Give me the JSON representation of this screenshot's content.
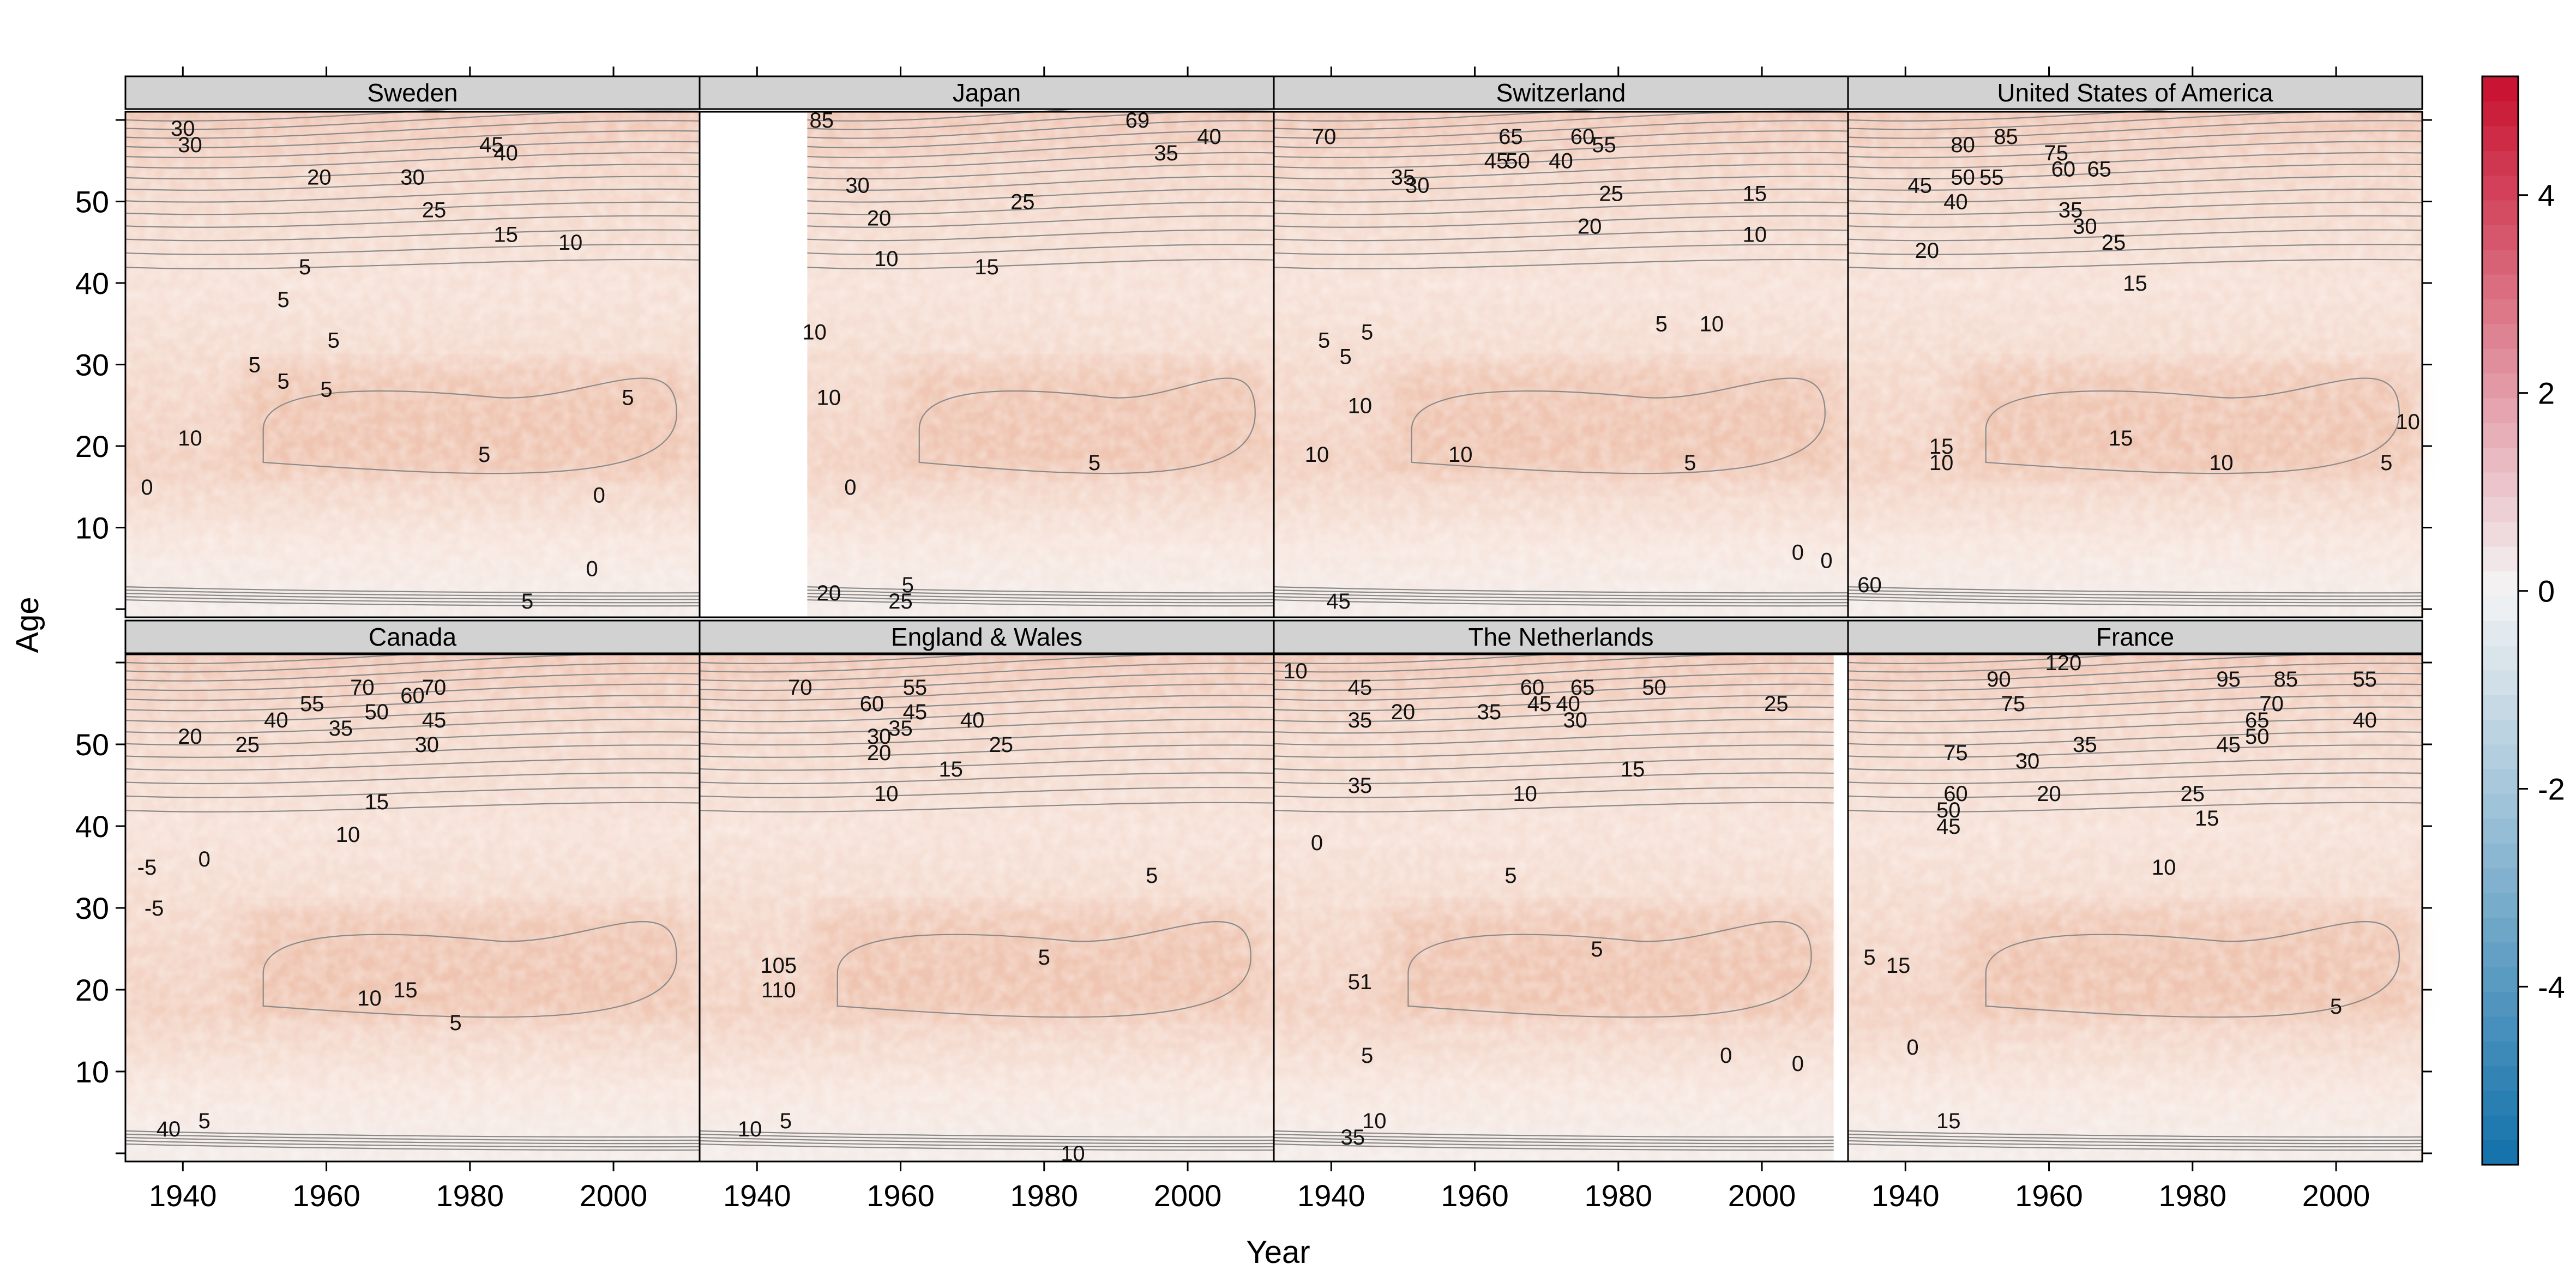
{
  "chart_data": {
    "type": "heatmap",
    "xlabel": "Year",
    "ylabel": "Age",
    "xlim": [
      1932,
      2012
    ],
    "ylim": [
      -1,
      61
    ],
    "x_ticks": [
      1940,
      1960,
      1980,
      2000
    ],
    "y_ticks": [
      10,
      20,
      30,
      40,
      50
    ],
    "colorbar": {
      "ticks": [
        4,
        2,
        0,
        -2,
        -4
      ],
      "range": [
        -5.8,
        5.2
      ],
      "colors": {
        "high": "#c8102e",
        "mid": "#f4f4f4",
        "low": "#1170aa"
      }
    },
    "panels": [
      {
        "name": "Sweden",
        "year_start": 1932,
        "year_end": 2012,
        "contour_labels": [
          {
            "text": "30",
            "year": 1940,
            "age": 59
          },
          {
            "text": "30",
            "year": 1941,
            "age": 57
          },
          {
            "text": "20",
            "year": 1959,
            "age": 53
          },
          {
            "text": "30",
            "year": 1972,
            "age": 53
          },
          {
            "text": "25",
            "year": 1975,
            "age": 49
          },
          {
            "text": "15",
            "year": 1985,
            "age": 46
          },
          {
            "text": "10",
            "year": 1994,
            "age": 45
          },
          {
            "text": "45",
            "year": 1983,
            "age": 57
          },
          {
            "text": "40",
            "year": 1985,
            "age": 56
          },
          {
            "text": "5",
            "year": 1957,
            "age": 42
          },
          {
            "text": "5",
            "year": 1954,
            "age": 38
          },
          {
            "text": "5",
            "year": 1950,
            "age": 30
          },
          {
            "text": "5",
            "year": 1961,
            "age": 33
          },
          {
            "text": "5",
            "year": 1954,
            "age": 28
          },
          {
            "text": "5",
            "year": 1960,
            "age": 27
          },
          {
            "text": "5",
            "year": 2002,
            "age": 26
          },
          {
            "text": "10",
            "year": 1941,
            "age": 21
          },
          {
            "text": "5",
            "year": 1982,
            "age": 19
          },
          {
            "text": "0",
            "year": 1935,
            "age": 15
          },
          {
            "text": "0",
            "year": 1998,
            "age": 14
          },
          {
            "text": "0",
            "year": 1997,
            "age": 5
          },
          {
            "text": "5",
            "year": 1988,
            "age": 1
          }
        ]
      },
      {
        "name": "Japan",
        "year_start": 1947,
        "year_end": 2012,
        "contour_labels": [
          {
            "text": "85",
            "year": 1949,
            "age": 60
          },
          {
            "text": "69",
            "year": 1993,
            "age": 60
          },
          {
            "text": "40",
            "year": 2003,
            "age": 58
          },
          {
            "text": "35",
            "year": 1997,
            "age": 56
          },
          {
            "text": "30",
            "year": 1954,
            "age": 52
          },
          {
            "text": "25",
            "year": 1977,
            "age": 50
          },
          {
            "text": "20",
            "year": 1957,
            "age": 48
          },
          {
            "text": "10",
            "year": 1958,
            "age": 43
          },
          {
            "text": "15",
            "year": 1972,
            "age": 42
          },
          {
            "text": "10",
            "year": 1948,
            "age": 34
          },
          {
            "text": "10",
            "year": 1950,
            "age": 26
          },
          {
            "text": "0",
            "year": 1953,
            "age": 15
          },
          {
            "text": "5",
            "year": 1987,
            "age": 18
          },
          {
            "text": "20",
            "year": 1950,
            "age": 2
          },
          {
            "text": "5",
            "year": 1961,
            "age": 3
          },
          {
            "text": "25",
            "year": 1960,
            "age": 1
          }
        ]
      },
      {
        "name": "Switzerland",
        "year_start": 1932,
        "year_end": 2012,
        "contour_labels": [
          {
            "text": "70",
            "year": 1939,
            "age": 58
          },
          {
            "text": "65",
            "year": 1965,
            "age": 58
          },
          {
            "text": "60",
            "year": 1975,
            "age": 58
          },
          {
            "text": "55",
            "year": 1978,
            "age": 57
          },
          {
            "text": "45",
            "year": 1963,
            "age": 55
          },
          {
            "text": "50",
            "year": 1966,
            "age": 55
          },
          {
            "text": "40",
            "year": 1972,
            "age": 55
          },
          {
            "text": "35",
            "year": 1950,
            "age": 53
          },
          {
            "text": "30",
            "year": 1952,
            "age": 52
          },
          {
            "text": "25",
            "year": 1979,
            "age": 51
          },
          {
            "text": "15",
            "year": 1999,
            "age": 51
          },
          {
            "text": "20",
            "year": 1976,
            "age": 47
          },
          {
            "text": "10",
            "year": 1999,
            "age": 46
          },
          {
            "text": "5",
            "year": 1986,
            "age": 35
          },
          {
            "text": "10",
            "year": 1993,
            "age": 35
          },
          {
            "text": "5",
            "year": 1939,
            "age": 33
          },
          {
            "text": "5",
            "year": 1945,
            "age": 34
          },
          {
            "text": "5",
            "year": 1942,
            "age": 31
          },
          {
            "text": "10",
            "year": 1944,
            "age": 25
          },
          {
            "text": "10",
            "year": 1938,
            "age": 19
          },
          {
            "text": "10",
            "year": 1958,
            "age": 19
          },
          {
            "text": "5",
            "year": 1990,
            "age": 18
          },
          {
            "text": "0",
            "year": 2005,
            "age": 7
          },
          {
            "text": "0",
            "year": 2009,
            "age": 6
          },
          {
            "text": "45",
            "year": 1941,
            "age": 1
          }
        ]
      },
      {
        "name": "United States of America",
        "year_start": 1932,
        "year_end": 2012,
        "contour_labels": [
          {
            "text": "80",
            "year": 1948,
            "age": 57
          },
          {
            "text": "85",
            "year": 1954,
            "age": 58
          },
          {
            "text": "75",
            "year": 1961,
            "age": 56
          },
          {
            "text": "60",
            "year": 1962,
            "age": 54
          },
          {
            "text": "65",
            "year": 1967,
            "age": 54
          },
          {
            "text": "55",
            "year": 1952,
            "age": 53
          },
          {
            "text": "50",
            "year": 1948,
            "age": 53
          },
          {
            "text": "45",
            "year": 1942,
            "age": 52
          },
          {
            "text": "40",
            "year": 1947,
            "age": 50
          },
          {
            "text": "35",
            "year": 1963,
            "age": 49
          },
          {
            "text": "30",
            "year": 1965,
            "age": 47
          },
          {
            "text": "25",
            "year": 1969,
            "age": 45
          },
          {
            "text": "20",
            "year": 1943,
            "age": 44
          },
          {
            "text": "15",
            "year": 1972,
            "age": 40
          },
          {
            "text": "15",
            "year": 1945,
            "age": 20
          },
          {
            "text": "10",
            "year": 1945,
            "age": 18
          },
          {
            "text": "15",
            "year": 1970,
            "age": 21
          },
          {
            "text": "10",
            "year": 1984,
            "age": 18
          },
          {
            "text": "10",
            "year": 2010,
            "age": 23
          },
          {
            "text": "5",
            "year": 2007,
            "age": 18
          },
          {
            "text": "60",
            "year": 1935,
            "age": 3
          }
        ]
      },
      {
        "name": "Canada",
        "year_start": 1932,
        "year_end": 2012,
        "contour_labels": [
          {
            "text": "70",
            "year": 1965,
            "age": 57
          },
          {
            "text": "60",
            "year": 1972,
            "age": 56
          },
          {
            "text": "70",
            "year": 1975,
            "age": 57
          },
          {
            "text": "55",
            "year": 1958,
            "age": 55
          },
          {
            "text": "50",
            "year": 1967,
            "age": 54
          },
          {
            "text": "45",
            "year": 1975,
            "age": 53
          },
          {
            "text": "40",
            "year": 1953,
            "age": 53
          },
          {
            "text": "35",
            "year": 1962,
            "age": 52
          },
          {
            "text": "20",
            "year": 1941,
            "age": 51
          },
          {
            "text": "25",
            "year": 1949,
            "age": 50
          },
          {
            "text": "30",
            "year": 1974,
            "age": 50
          },
          {
            "text": "15",
            "year": 1967,
            "age": 43
          },
          {
            "text": "10",
            "year": 1963,
            "age": 39
          },
          {
            "text": "0",
            "year": 1943,
            "age": 36
          },
          {
            "text": "-5",
            "year": 1935,
            "age": 35
          },
          {
            "text": "-5",
            "year": 1936,
            "age": 30
          },
          {
            "text": "10",
            "year": 1966,
            "age": 19
          },
          {
            "text": "15",
            "year": 1971,
            "age": 20
          },
          {
            "text": "5",
            "year": 1978,
            "age": 16
          },
          {
            "text": "40",
            "year": 1938,
            "age": 3
          },
          {
            "text": "5",
            "year": 1943,
            "age": 4
          }
        ]
      },
      {
        "name": "England & Wales",
        "year_start": 1932,
        "year_end": 2012,
        "contour_labels": [
          {
            "text": "70",
            "year": 1946,
            "age": 57
          },
          {
            "text": "55",
            "year": 1962,
            "age": 57
          },
          {
            "text": "60",
            "year": 1956,
            "age": 55
          },
          {
            "text": "45",
            "year": 1962,
            "age": 54
          },
          {
            "text": "40",
            "year": 1970,
            "age": 53
          },
          {
            "text": "35",
            "year": 1960,
            "age": 52
          },
          {
            "text": "30",
            "year": 1957,
            "age": 51
          },
          {
            "text": "25",
            "year": 1974,
            "age": 50
          },
          {
            "text": "20",
            "year": 1957,
            "age": 49
          },
          {
            "text": "15",
            "year": 1967,
            "age": 47
          },
          {
            "text": "10",
            "year": 1958,
            "age": 44
          },
          {
            "text": "5",
            "year": 1995,
            "age": 34
          },
          {
            "text": "5",
            "year": 1980,
            "age": 24
          },
          {
            "text": "105",
            "year": 1943,
            "age": 23
          },
          {
            "text": "110",
            "year": 1943,
            "age": 20
          },
          {
            "text": "10",
            "year": 1939,
            "age": 3
          },
          {
            "text": "5",
            "year": 1944,
            "age": 4
          },
          {
            "text": "10",
            "year": 1984,
            "age": 0
          }
        ]
      },
      {
        "name": "The Netherlands",
        "year_start": 1932,
        "year_end": 2010,
        "contour_labels": [
          {
            "text": "10",
            "year": 1935,
            "age": 59
          },
          {
            "text": "45",
            "year": 1944,
            "age": 57
          },
          {
            "text": "35",
            "year": 1944,
            "age": 53
          },
          {
            "text": "20",
            "year": 1950,
            "age": 54
          },
          {
            "text": "60",
            "year": 1968,
            "age": 57
          },
          {
            "text": "65",
            "year": 1975,
            "age": 57
          },
          {
            "text": "50",
            "year": 1985,
            "age": 57
          },
          {
            "text": "45",
            "year": 1969,
            "age": 55
          },
          {
            "text": "40",
            "year": 1973,
            "age": 55
          },
          {
            "text": "35",
            "year": 1962,
            "age": 54
          },
          {
            "text": "30",
            "year": 1974,
            "age": 53
          },
          {
            "text": "25",
            "year": 2002,
            "age": 55
          },
          {
            "text": "15",
            "year": 1982,
            "age": 47
          },
          {
            "text": "10",
            "year": 1967,
            "age": 44
          },
          {
            "text": "35",
            "year": 1944,
            "age": 45
          },
          {
            "text": "5",
            "year": 1965,
            "age": 34
          },
          {
            "text": "5",
            "year": 1977,
            "age": 25
          },
          {
            "text": "0",
            "year": 1938,
            "age": 38
          },
          {
            "text": "51",
            "year": 1944,
            "age": 21
          },
          {
            "text": "5",
            "year": 1945,
            "age": 12
          },
          {
            "text": "0",
            "year": 1995,
            "age": 12
          },
          {
            "text": "0",
            "year": 2005,
            "age": 11
          },
          {
            "text": "10",
            "year": 1946,
            "age": 4
          },
          {
            "text": "35",
            "year": 1943,
            "age": 2
          }
        ]
      },
      {
        "name": "France",
        "year_start": 1932,
        "year_end": 2012,
        "contour_labels": [
          {
            "text": "120",
            "year": 1962,
            "age": 60
          },
          {
            "text": "95",
            "year": 1985,
            "age": 58
          },
          {
            "text": "85",
            "year": 1993,
            "age": 58
          },
          {
            "text": "55",
            "year": 2004,
            "age": 58
          },
          {
            "text": "90",
            "year": 1953,
            "age": 58
          },
          {
            "text": "75",
            "year": 1955,
            "age": 55
          },
          {
            "text": "70",
            "year": 1991,
            "age": 55
          },
          {
            "text": "65",
            "year": 1989,
            "age": 53
          },
          {
            "text": "40",
            "year": 2004,
            "age": 53
          },
          {
            "text": "50",
            "year": 1989,
            "age": 51
          },
          {
            "text": "45",
            "year": 1985,
            "age": 50
          },
          {
            "text": "35",
            "year": 1965,
            "age": 50
          },
          {
            "text": "75",
            "year": 1947,
            "age": 49
          },
          {
            "text": "30",
            "year": 1957,
            "age": 48
          },
          {
            "text": "20",
            "year": 1960,
            "age": 44
          },
          {
            "text": "25",
            "year": 1980,
            "age": 44
          },
          {
            "text": "60",
            "year": 1947,
            "age": 44
          },
          {
            "text": "15",
            "year": 1982,
            "age": 41
          },
          {
            "text": "50",
            "year": 1946,
            "age": 42
          },
          {
            "text": "45",
            "year": 1946,
            "age": 40
          },
          {
            "text": "10",
            "year": 1976,
            "age": 35
          },
          {
            "text": "5",
            "year": 1935,
            "age": 24
          },
          {
            "text": "15",
            "year": 1939,
            "age": 23
          },
          {
            "text": "5",
            "year": 2000,
            "age": 18
          },
          {
            "text": "0",
            "year": 1941,
            "age": 13
          },
          {
            "text": "15",
            "year": 1946,
            "age": 4
          }
        ]
      }
    ]
  }
}
